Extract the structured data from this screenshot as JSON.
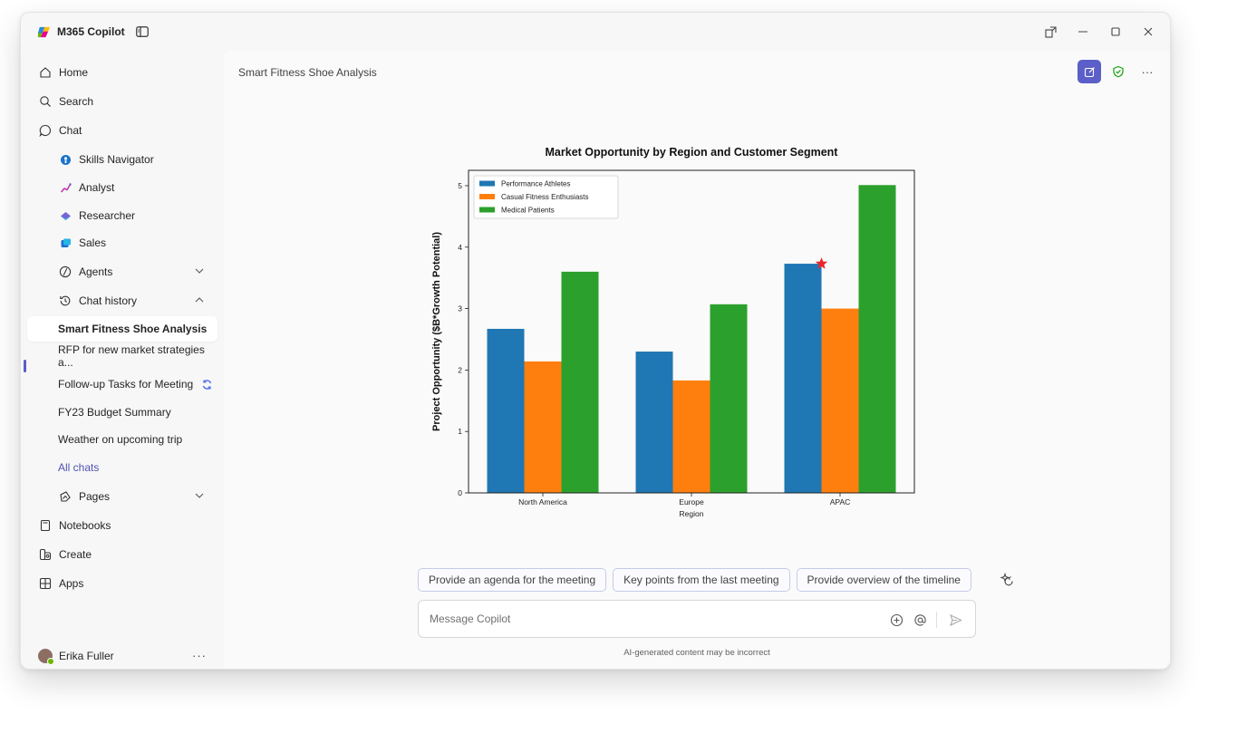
{
  "app": {
    "title": "M365 Copilot"
  },
  "sidebar": {
    "nav": [
      {
        "label": "Home",
        "icon": "home-icon"
      },
      {
        "label": "Search",
        "icon": "search-icon"
      },
      {
        "label": "Chat",
        "icon": "chat-icon"
      }
    ],
    "chat_agents": [
      {
        "label": "Skills Navigator",
        "icon": "skills-navigator-icon"
      },
      {
        "label": "Analyst",
        "icon": "analyst-icon"
      },
      {
        "label": "Researcher",
        "icon": "researcher-icon"
      },
      {
        "label": "Sales",
        "icon": "sales-icon"
      }
    ],
    "agents_label": "Agents",
    "chat_history_label": "Chat history",
    "history": [
      {
        "label": "Smart Fitness Shoe Analysis",
        "active": true
      },
      {
        "label": "RFP for new market strategies a..."
      },
      {
        "label": "Follow-up Tasks for Meeting"
      },
      {
        "label": "FY23 Budget Summary"
      },
      {
        "label": "Weather on upcoming trip"
      }
    ],
    "all_chats_label": "All chats",
    "pages_label": "Pages",
    "bottom_nav": [
      {
        "label": "Notebooks",
        "icon": "notebook-icon"
      },
      {
        "label": "Create",
        "icon": "create-icon"
      },
      {
        "label": "Apps",
        "icon": "apps-icon"
      }
    ],
    "user_name": "Erika Fuller",
    "user_more": "···"
  },
  "main": {
    "chat_title": "Smart Fitness Shoe Analysis",
    "more_label": "···",
    "prompts": [
      "Provide an agenda for the meeting",
      "Key points from the last meeting",
      "Provide overview of the timeline"
    ],
    "composer_placeholder": "Message Copilot",
    "disclaimer": "AI-generated content may be incorrect"
  },
  "colors": {
    "accent": "#5b5fc7",
    "series_blue": "#1f77b4",
    "series_orange": "#ff7f0e",
    "series_green": "#2ca02c",
    "star": "#e8252b"
  },
  "chart_data": {
    "type": "bar",
    "title": "Market Opportunity by Region and Customer Segment",
    "xlabel": "Region",
    "ylabel": "Project Opportunity ($B*Growth Potential)",
    "categories": [
      "North America",
      "Europe",
      "APAC"
    ],
    "series": [
      {
        "name": "Performance Athletes",
        "values": [
          2.67,
          2.3,
          3.73
        ]
      },
      {
        "name": "Casual Fitness Enthusiasts",
        "values": [
          2.14,
          1.83,
          3.0
        ]
      },
      {
        "name": "Medical Patients",
        "values": [
          3.6,
          3.07,
          5.01
        ]
      }
    ],
    "ylim": [
      0,
      5.25
    ],
    "yticks": [
      0,
      1,
      2,
      3,
      4,
      5
    ],
    "legend": "top-left",
    "grid": false,
    "marker": {
      "shape": "star",
      "category": "APAC",
      "value": 3.73
    }
  }
}
